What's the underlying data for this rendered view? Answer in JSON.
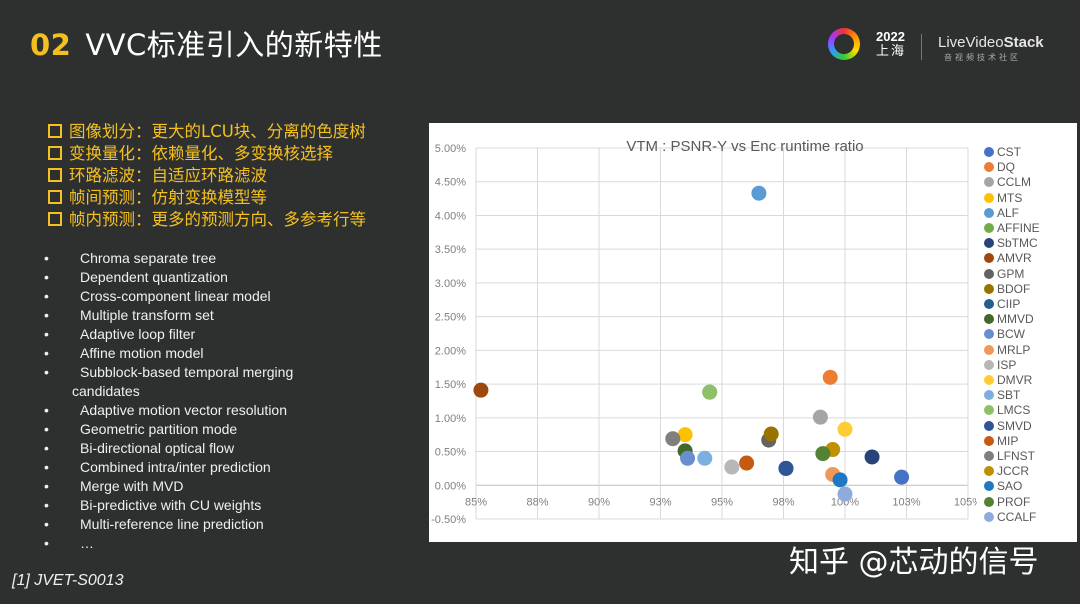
{
  "header": {
    "section_number": "02",
    "title": "VVC标准引入的新特性"
  },
  "logo": {
    "year": "2022",
    "city": "上海",
    "brand_prefix": "LiveVideo",
    "brand_suffix": "Stack",
    "subtitle": "音视频技术社区"
  },
  "features": [
    {
      "label": "图像划分：更大的LCU块、分离的色度树"
    },
    {
      "label": "变换量化：依赖量化、多变换核选择"
    },
    {
      "label": "环路滤波：自适应环路滤波"
    },
    {
      "label": "帧间预测：仿射变换模型等"
    },
    {
      "label": "帧内预测：更多的预测方向、多参考行等"
    }
  ],
  "tools": [
    {
      "bullet": "•",
      "label": "Chroma separate tree"
    },
    {
      "bullet": "•",
      "label": "Dependent quantization"
    },
    {
      "bullet": "•",
      "label": "Cross-component linear model"
    },
    {
      "bullet": "•",
      "label": "Multiple transform set"
    },
    {
      "bullet": "•",
      "label": "Adaptive loop filter"
    },
    {
      "bullet": "•",
      "label": "Affine motion model"
    },
    {
      "bullet": "•",
      "label": "Subblock-based temporal merging",
      "continuation": "candidates"
    },
    {
      "bullet": "•",
      "label": "Adaptive motion vector resolution"
    },
    {
      "bullet": "•",
      "label": "Geometric partition mode"
    },
    {
      "bullet": "•",
      "label": "Bi-directional optical flow"
    },
    {
      "bullet": "•",
      "label": "Combined intra/inter prediction"
    },
    {
      "bullet": "•",
      "label": "Merge with MVD"
    },
    {
      "bullet": "•",
      "label": "Bi-predictive with CU weights"
    },
    {
      "bullet": "•",
      "label": "Multi-reference line prediction"
    },
    {
      "bullet": "•",
      "label": "…"
    }
  ],
  "reference": "[1] JVET-S0013",
  "watermark": "知乎 @芯动的信号",
  "colors": {
    "background": "#2e2f2f",
    "accent_yellow": "#f4c020",
    "text_white": "#f0f0f0"
  },
  "chart_data": {
    "type": "scatter",
    "title": "VTM : PSNR-Y vs Enc runtime ratio",
    "xlabel": "",
    "ylabel": "",
    "xlim": [
      85,
      105
    ],
    "ylim": [
      -0.5,
      5.0
    ],
    "x_ticks": [
      "85%",
      "88%",
      "90%",
      "93%",
      "95%",
      "98%",
      "100%",
      "103%",
      "105%"
    ],
    "x_tick_values": [
      85,
      87.5,
      90,
      92.5,
      95,
      97.5,
      100,
      102.5,
      105
    ],
    "y_ticks": [
      "5.00%",
      "4.50%",
      "4.00%",
      "3.50%",
      "3.00%",
      "2.50%",
      "2.00%",
      "1.50%",
      "1.00%",
      "0.50%",
      "0.00%",
      "-0.50%"
    ],
    "y_tick_values": [
      5.0,
      4.5,
      4.0,
      3.5,
      3.0,
      2.5,
      2.0,
      1.5,
      1.0,
      0.5,
      0.0,
      -0.5
    ],
    "grid": true,
    "legend_position": "right",
    "series": [
      {
        "name": "CST",
        "color": "#4472c4",
        "x": 102.3,
        "y": 0.12
      },
      {
        "name": "DQ",
        "color": "#ed7d31",
        "x": 99.4,
        "y": 1.6
      },
      {
        "name": "CCLM",
        "color": "#a5a5a5",
        "x": 99.0,
        "y": 1.01
      },
      {
        "name": "MTS",
        "color": "#ffc000",
        "x": 93.5,
        "y": 0.75
      },
      {
        "name": "ALF",
        "color": "#5b9bd5",
        "x": 96.5,
        "y": 4.33
      },
      {
        "name": "AFFINE",
        "color": "#70ad47",
        "x": 94.5,
        "y": 1.38
      },
      {
        "name": "SbTMC",
        "color": "#264478",
        "x": 101.1,
        "y": 0.42
      },
      {
        "name": "AMVR",
        "color": "#9e480e",
        "x": 85.2,
        "y": 1.41
      },
      {
        "name": "GPM",
        "color": "#636363",
        "x": 96.9,
        "y": 0.67
      },
      {
        "name": "BDOF",
        "color": "#997300",
        "x": 97.0,
        "y": 0.76
      },
      {
        "name": "CIIP",
        "color": "#255e91",
        "x": 97.6,
        "y": 0.25
      },
      {
        "name": "MMVD",
        "color": "#43682b",
        "x": 93.5,
        "y": 0.51
      },
      {
        "name": "BCW",
        "color": "#698ed0",
        "x": 93.6,
        "y": 0.4
      },
      {
        "name": "MRLP",
        "color": "#f1975a",
        "x": 99.5,
        "y": 0.16
      },
      {
        "name": "ISP",
        "color": "#b7b7b7",
        "x": 95.4,
        "y": 0.27
      },
      {
        "name": "DMVR",
        "color": "#ffcd33",
        "x": 100.0,
        "y": 0.83
      },
      {
        "name": "SBT",
        "color": "#7cafdd",
        "x": 94.3,
        "y": 0.4
      },
      {
        "name": "LMCS",
        "color": "#8cc168",
        "x": 94.5,
        "y": 1.38
      },
      {
        "name": "SMVD",
        "color": "#2f5597",
        "x": 97.6,
        "y": 0.25
      },
      {
        "name": "MIP",
        "color": "#c55a11",
        "x": 96.0,
        "y": 0.33
      },
      {
        "name": "LFNST",
        "color": "#7f7f7f",
        "x": 93.0,
        "y": 0.69
      },
      {
        "name": "JCCR",
        "color": "#bf9000",
        "x": 99.5,
        "y": 0.53
      },
      {
        "name": "SAO",
        "color": "#1f78c1",
        "x": 99.8,
        "y": 0.08
      },
      {
        "name": "PROF",
        "color": "#548235",
        "x": 99.1,
        "y": 0.47
      },
      {
        "name": "CCALF",
        "color": "#8faadc",
        "x": 100.0,
        "y": -0.13
      }
    ]
  }
}
